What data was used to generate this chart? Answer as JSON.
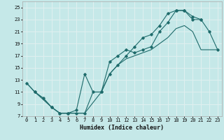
{
  "title": "",
  "xlabel": "Humidex (Indice chaleur)",
  "xlim": [
    -0.5,
    23.5
  ],
  "ylim": [
    7,
    26
  ],
  "xticks": [
    0,
    1,
    2,
    3,
    4,
    5,
    6,
    7,
    8,
    9,
    10,
    11,
    12,
    13,
    14,
    15,
    16,
    17,
    18,
    19,
    20,
    21,
    22,
    23
  ],
  "yticks": [
    7,
    9,
    11,
    13,
    15,
    17,
    19,
    21,
    23,
    25
  ],
  "bg_color": "#c5e8e8",
  "line_color": "#1e6b6b",
  "grid_color": "#e0f0f0",
  "line1_x": [
    0,
    1,
    2,
    3,
    4,
    5,
    6,
    7,
    8,
    9,
    10,
    11,
    12,
    13,
    14,
    15,
    16,
    17,
    18,
    19,
    20,
    21,
    22,
    23
  ],
  "line1_y": [
    12.5,
    11,
    10,
    8.5,
    7.5,
    7.5,
    7.5,
    7.5,
    11,
    11,
    14,
    15.5,
    16.5,
    17,
    17.5,
    18,
    19,
    20,
    21.5,
    22,
    21,
    18,
    18,
    18
  ],
  "line2_x": [
    0,
    1,
    3,
    4,
    5,
    6,
    7,
    9,
    10,
    11,
    12,
    13,
    14,
    15,
    16,
    17,
    18,
    19,
    20,
    21,
    22,
    23
  ],
  "line2_y": [
    12.5,
    11,
    8.5,
    7.5,
    7.5,
    7.5,
    7.5,
    11,
    14,
    15.5,
    17,
    18.5,
    20,
    20.5,
    22,
    24,
    24.5,
    24.5,
    23.5,
    23,
    21,
    18
  ],
  "line3_x": [
    1,
    2,
    3,
    4,
    5,
    6,
    7,
    8,
    9,
    10,
    11,
    12,
    13,
    14,
    15,
    16,
    17,
    18,
    19,
    20,
    21
  ],
  "line3_y": [
    11,
    10,
    8.5,
    7.5,
    7.5,
    8.0,
    14,
    11,
    11,
    16,
    17,
    18,
    17.5,
    18,
    18.5,
    21,
    22.5,
    24.5,
    24.5,
    23,
    23
  ]
}
